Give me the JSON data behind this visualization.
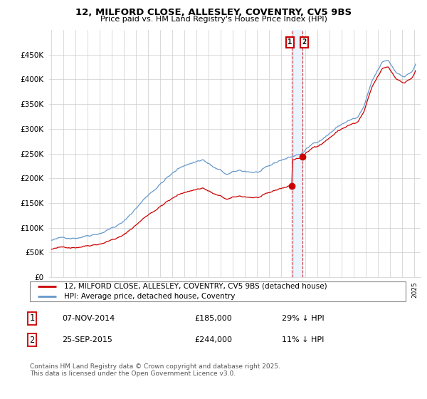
{
  "title1": "12, MILFORD CLOSE, ALLESLEY, COVENTRY, CV5 9BS",
  "title2": "Price paid vs. HM Land Registry's House Price Index (HPI)",
  "legend_line1": "12, MILFORD CLOSE, ALLESLEY, COVENTRY, CV5 9BS (detached house)",
  "legend_line2": "HPI: Average price, detached house, Coventry",
  "annotation1": {
    "num": "1",
    "date": "07-NOV-2014",
    "price": "£185,000",
    "pct": "29% ↓ HPI"
  },
  "annotation2": {
    "num": "2",
    "date": "25-SEP-2015",
    "price": "£244,000",
    "pct": "11% ↓ HPI"
  },
  "sale1_year": 2014.854,
  "sale2_year": 2015.727,
  "sale1_price": 185000,
  "sale2_price": 244000,
  "footer": "Contains HM Land Registry data © Crown copyright and database right 2025.\nThis data is licensed under the Open Government Licence v3.0.",
  "color_red": "#cc0000",
  "color_blue": "#6699cc",
  "color_band": "#ddeeff",
  "ylim": [
    0,
    500000
  ],
  "xlim_start": 1994.8,
  "xlim_end": 2025.5
}
